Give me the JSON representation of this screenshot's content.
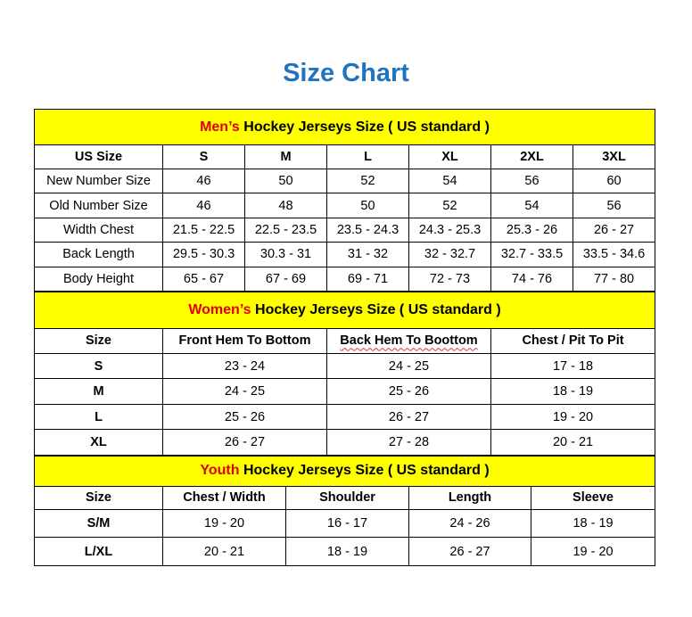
{
  "title": "Size Chart",
  "mens": {
    "prefix": "Men’s",
    "suffix": " Hockey Jerseys Size ( US standard )",
    "headers": [
      "US Size",
      "S",
      "M",
      "L",
      "XL",
      "2XL",
      "3XL"
    ],
    "rows": [
      [
        "New Number Size",
        "46",
        "50",
        "52",
        "54",
        "56",
        "60"
      ],
      [
        "Old Number Size",
        "46",
        "48",
        "50",
        "52",
        "54",
        "56"
      ],
      [
        "Width Chest",
        "21.5 - 22.5",
        "22.5 - 23.5",
        "23.5 - 24.3",
        "24.3 - 25.3",
        "25.3 - 26",
        "26 - 27"
      ],
      [
        "Back Length",
        "29.5 - 30.3",
        "30.3 - 31",
        "31 - 32",
        "32 - 32.7",
        "32.7 - 33.5",
        "33.5 - 34.6"
      ],
      [
        "Body Height",
        "65 - 67",
        "67 - 69",
        "69 - 71",
        "72 - 73",
        "74 - 76",
        "77 - 80"
      ]
    ]
  },
  "womens": {
    "prefix": "Women’s",
    "suffix": " Hockey Jerseys Size ( US standard )",
    "headers": [
      "Size",
      "Front Hem To Bottom",
      "Back Hem To Boottom",
      "Chest / Pit To Pit"
    ],
    "rows": [
      [
        "S",
        "23 - 24",
        "24 - 25",
        "17 - 18"
      ],
      [
        "M",
        "24 - 25",
        "25 - 26",
        "18 - 19"
      ],
      [
        "L",
        "25 - 26",
        "26 - 27",
        "19 - 20"
      ],
      [
        "XL",
        "26 - 27",
        "27 - 28",
        "20 - 21"
      ]
    ]
  },
  "youth": {
    "prefix": "Youth",
    "suffix": " Hockey Jerseys Size ( US standard )",
    "headers": [
      "Size",
      "Chest / Width",
      "Shoulder",
      "Length",
      "Sleeve"
    ],
    "rows": [
      [
        "S/M",
        "19 - 20",
        "16 - 17",
        "24 - 26",
        "18 - 19"
      ],
      [
        "L/XL",
        "20 - 21",
        "18 - 19",
        "26 - 27",
        "19 - 20"
      ]
    ]
  }
}
